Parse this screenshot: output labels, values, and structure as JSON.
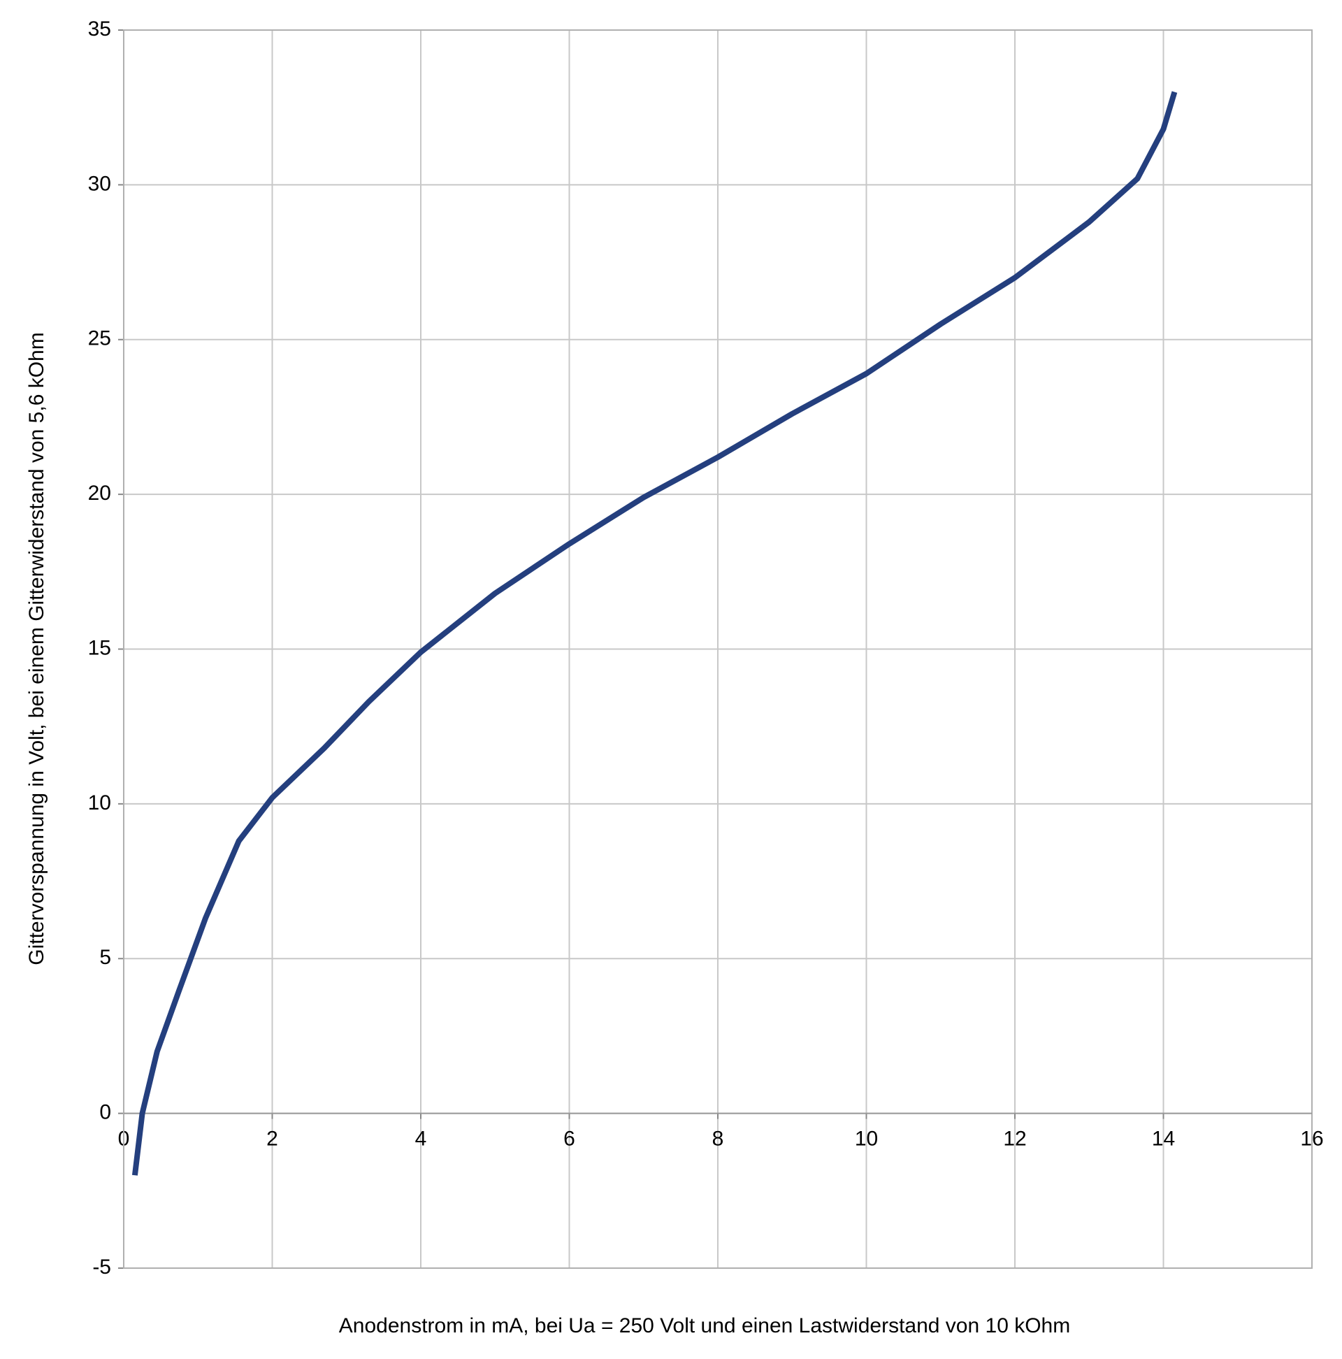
{
  "chart_data": {
    "type": "line",
    "xlabel": "Anodenstrom in mA, bei Ua = 250 Volt und einen Lastwiderstand von 10 kOhm",
    "ylabel": "Gittervorspannung in Volt, bei einem Gitterwiderstand von 5,6 kOhm",
    "x": [
      0.15,
      0.25,
      0.45,
      0.75,
      1.1,
      1.55,
      2,
      2.7,
      3.3,
      4,
      5,
      6,
      7,
      8,
      9,
      10,
      11,
      12,
      13,
      13.65,
      14,
      14.15
    ],
    "series": [
      {
        "color": "#243f7e",
        "values": [
          -2,
          0,
          2,
          4,
          6.3,
          8.8,
          10.2,
          11.8,
          13.3,
          14.9,
          16.8,
          18.4,
          19.9,
          21.2,
          22.6,
          23.9,
          25.5,
          27.0,
          28.8,
          30.2,
          31.8,
          33.0
        ]
      }
    ],
    "xlim": [
      0,
      16
    ],
    "xticks": [
      0,
      2,
      4,
      6,
      8,
      10,
      12,
      14,
      16
    ],
    "ylim": [
      -5,
      35
    ],
    "yticks": [
      -5,
      0,
      5,
      10,
      15,
      20,
      25,
      30,
      35
    ],
    "grid": true
  }
}
